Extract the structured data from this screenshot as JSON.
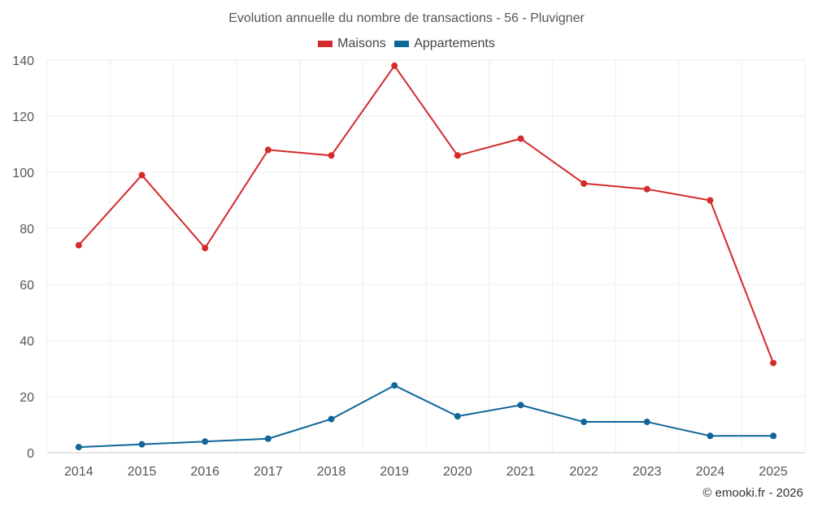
{
  "chart_data": {
    "type": "line",
    "title": "Evolution annuelle du nombre de transactions - 56 - Pluvigner",
    "categories": [
      "2014",
      "2015",
      "2016",
      "2017",
      "2018",
      "2019",
      "2020",
      "2021",
      "2022",
      "2023",
      "2024",
      "2025"
    ],
    "series": [
      {
        "name": "Maisons",
        "color": "#d42a2a",
        "values": [
          74,
          99,
          73,
          108,
          106,
          138,
          106,
          112,
          96,
          94,
          90,
          32
        ]
      },
      {
        "name": "Appartements",
        "color": "#0e6699",
        "values": [
          2,
          3,
          4,
          5,
          12,
          24,
          13,
          17,
          11,
          11,
          6,
          6
        ]
      }
    ],
    "ylim": [
      0,
      140
    ],
    "yticks": [
      0,
      20,
      40,
      60,
      80,
      100,
      120,
      140
    ],
    "xlabel": "",
    "ylabel": "",
    "grid": true,
    "legend_position": "top-center"
  },
  "credit": "© emooki.fr - 2026"
}
